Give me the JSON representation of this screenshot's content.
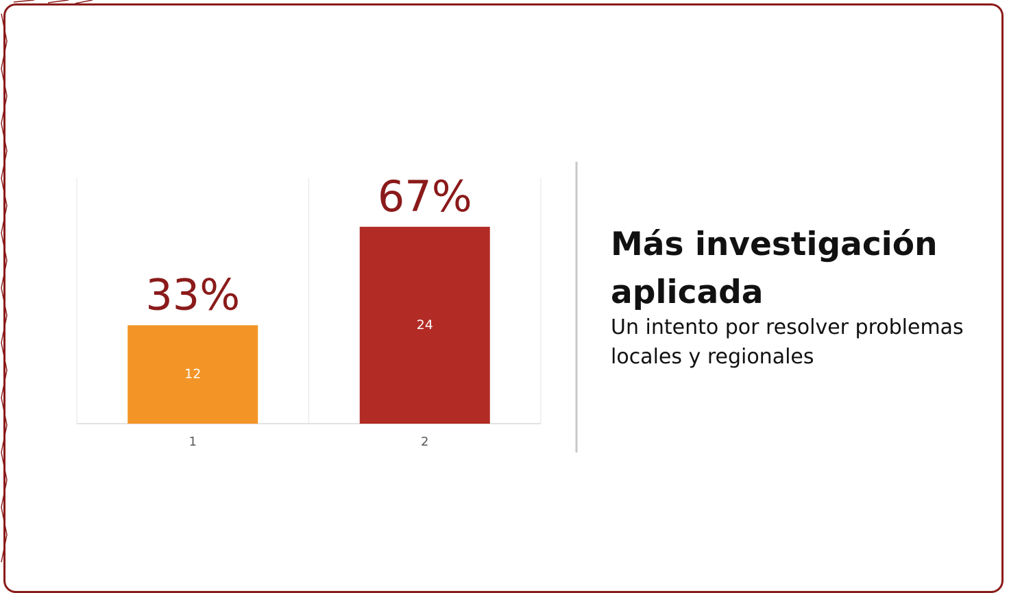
{
  "chart_data": {
    "type": "bar",
    "categories": [
      "1",
      "2"
    ],
    "values": [
      12,
      24
    ],
    "colors": [
      "#f39427",
      "#b22b25"
    ],
    "annotations": [
      "33%",
      "67%"
    ],
    "annotation_color": "#8b1a1a",
    "ylim": [
      0,
      30
    ],
    "grid": true
  },
  "slide": {
    "heading": "Más investigación aplicada",
    "subheading": "Un intento por resolver problemas locales y regionales"
  }
}
